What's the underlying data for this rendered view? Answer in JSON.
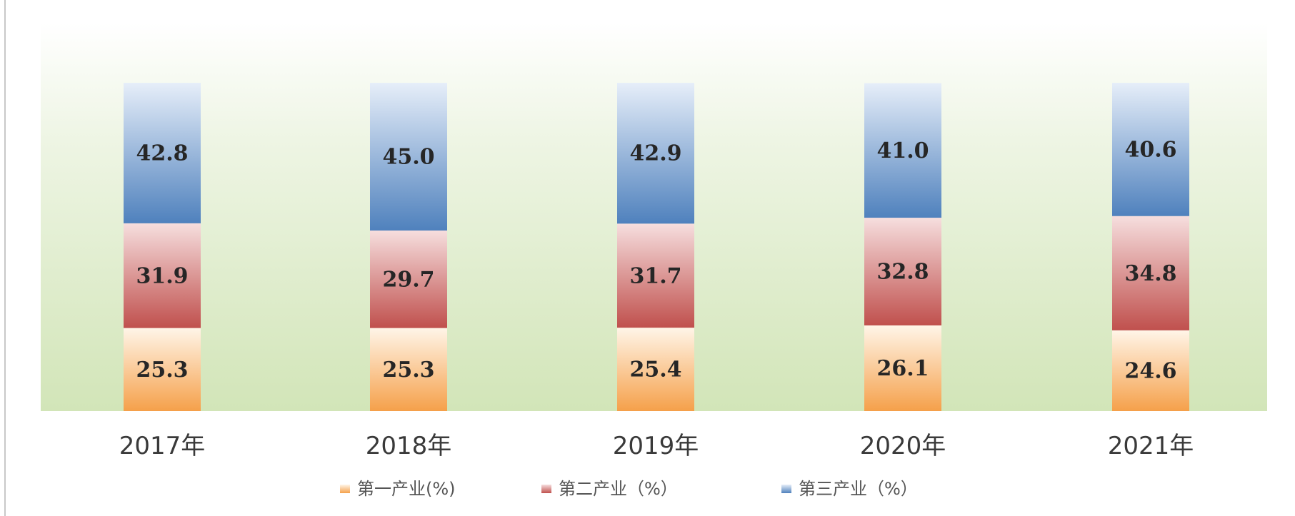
{
  "chart_data": {
    "type": "bar",
    "stacked": true,
    "categories": [
      "2017年",
      "2018年",
      "2019年",
      "2020年",
      "2021年"
    ],
    "series": [
      {
        "name": "第一产业(%)",
        "values": [
          25.3,
          25.3,
          25.4,
          26.1,
          24.6
        ],
        "labels": [
          "25.3",
          "25.3",
          "25.4",
          "26.1",
          "24.6"
        ],
        "color": "#f5a04a"
      },
      {
        "name": "第二产业（%）",
        "values": [
          31.9,
          29.7,
          31.7,
          32.8,
          34.8
        ],
        "labels": [
          "31.9",
          "29.7",
          "31.7",
          "32.8",
          "34.8"
        ],
        "color": "#c0504d"
      },
      {
        "name": "第三产业（%）",
        "values": [
          42.8,
          45.0,
          42.9,
          41.0,
          40.6
        ],
        "labels": [
          "42.8",
          "45.0",
          "42.9",
          "41.0",
          "40.6"
        ],
        "color": "#4f81bd"
      }
    ],
    "ylim": [
      0,
      100
    ],
    "grid": false,
    "legend_position": "bottom",
    "title": "",
    "xlabel": "",
    "ylabel": ""
  }
}
